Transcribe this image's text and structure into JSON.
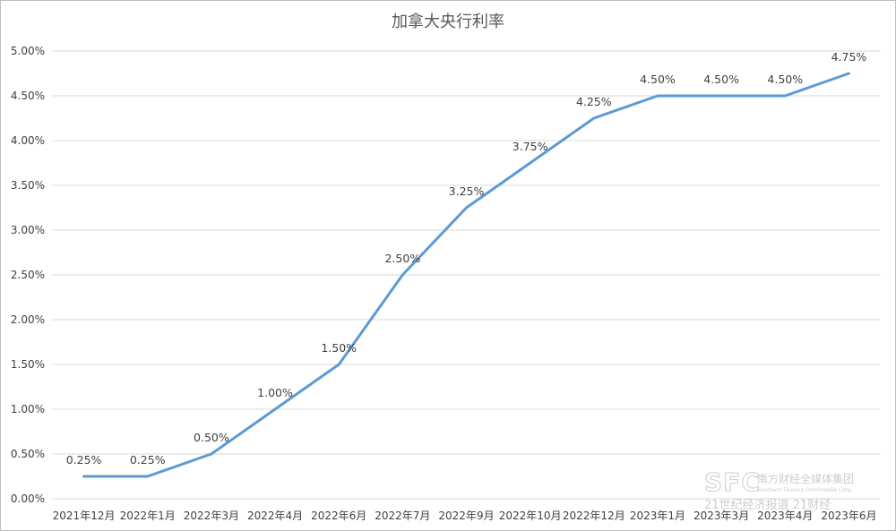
{
  "colors": {
    "series": "#5b9bd5",
    "grid": "#d9d9d9",
    "text": "#404040",
    "watermark": "#c8c8c8"
  },
  "chart_data": {
    "type": "line",
    "title": "加拿大央行利率",
    "xlabel": "",
    "ylabel": "",
    "categories": [
      "2021年12月",
      "2022年1月",
      "2022年3月",
      "2022年4月",
      "2022年6月",
      "2022年7月",
      "2022年9月",
      "2022年10月",
      "2022年12月",
      "2023年1月",
      "2023年3月",
      "2023年4月",
      "2023年6月"
    ],
    "series": [
      {
        "values": [
          0.25,
          0.25,
          0.5,
          1.0,
          1.5,
          2.5,
          3.25,
          3.75,
          4.25,
          4.5,
          4.5,
          4.5,
          4.75
        ],
        "labels": [
          "0.25%",
          "0.25%",
          "0.50%",
          "1.00%",
          "1.50%",
          "2.50%",
          "3.25%",
          "3.75%",
          "4.25%",
          "4.50%",
          "4.50%",
          "4.50%",
          "4.75%"
        ]
      }
    ],
    "yticks": [
      "0.00%",
      "0.50%",
      "1.00%",
      "1.50%",
      "2.00%",
      "2.50%",
      "3.00%",
      "3.50%",
      "4.00%",
      "4.50%",
      "5.00%"
    ],
    "ylim": [
      0,
      5
    ],
    "grid": true,
    "legend": "none"
  },
  "watermark": {
    "logo": "SFC",
    "line1": "南方财经全媒体集团",
    "line2": "Southern Finance Omnimedia Corp.",
    "line3": "21世纪经济报道 21财经"
  }
}
